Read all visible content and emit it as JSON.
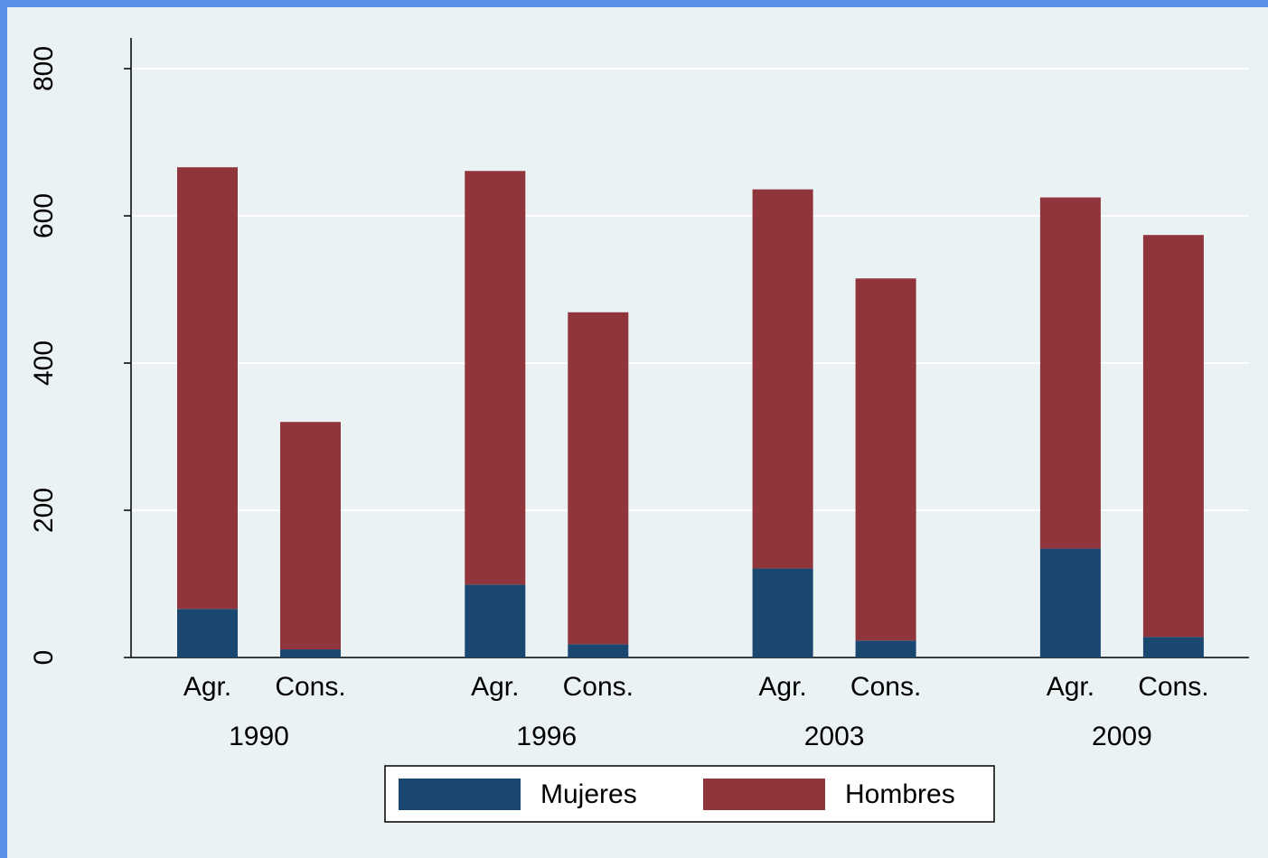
{
  "chart_data": {
    "type": "stacked_bar",
    "groups": [
      "1990",
      "1996",
      "2003",
      "2009"
    ],
    "categories": [
      "Agr.",
      "Cons.",
      "Agr.",
      "Cons.",
      "Agr.",
      "Cons.",
      "Agr.",
      "Cons."
    ],
    "series": [
      {
        "name": "Mujeres",
        "color": "#1a476f",
        "values": [
          66,
          11,
          99,
          18,
          121,
          23,
          148,
          28
        ]
      },
      {
        "name": "Hombres",
        "color": "#90353b",
        "values": [
          600,
          309,
          562,
          451,
          515,
          492,
          477,
          546
        ]
      }
    ],
    "ylim": [
      0,
      800
    ],
    "yticks": [
      0,
      200,
      400,
      600,
      800
    ],
    "grid": true,
    "legend": "bottom"
  }
}
